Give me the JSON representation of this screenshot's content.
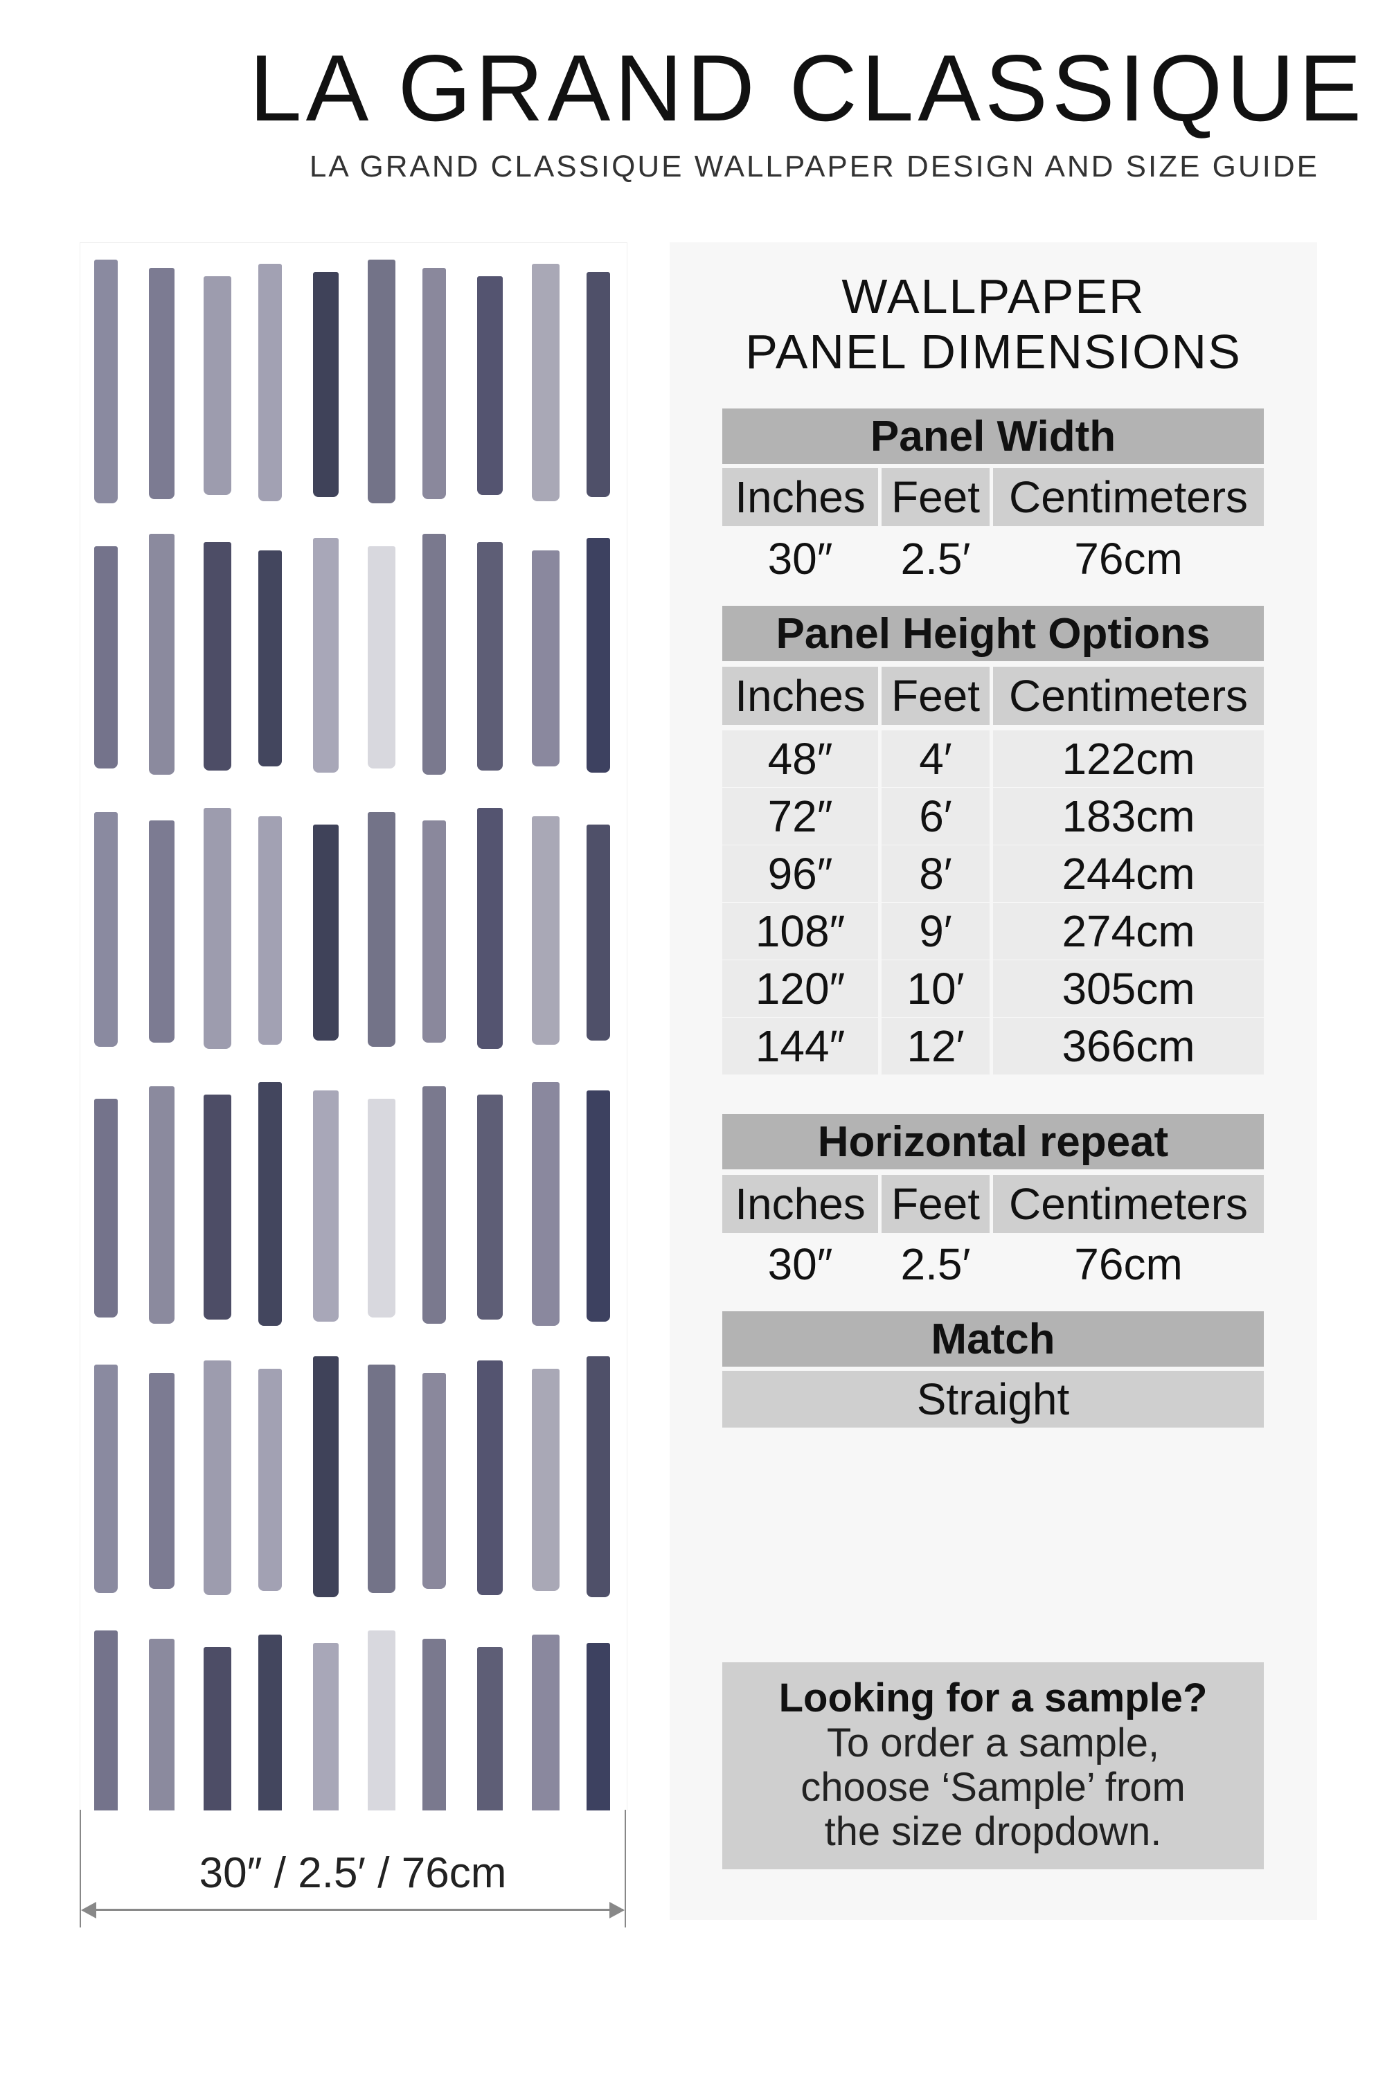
{
  "header": {
    "title": "LA GRAND CLASSIQUE",
    "subtitle": "LA GRAND CLASSIQUE WALLPAPER DESIGN AND SIZE GUIDE"
  },
  "preview": {
    "width_label": "30″ / 2.5′ / 76cm",
    "pattern_a_colors": [
      "#8a8aa0",
      "#7c7b92",
      "#9d9cae",
      "#a2a1b3",
      "#3f4259",
      "#737388",
      "#8a889c",
      "#545470",
      "#a9a8b6",
      "#4f5069"
    ],
    "pattern_b_colors": [
      "#74738b",
      "#8b8a9e",
      "#4d4d66",
      "#43465e",
      "#a8a7b8",
      "#d8d8de",
      "#7a798e",
      "#5e5e76",
      "#8a889e",
      "#3d4160"
    ]
  },
  "dimensions": {
    "title_line1": "WALLPAPER",
    "title_line2": "PANEL DIMENSIONS",
    "columns": [
      "Inches",
      "Feet",
      "Centimeters"
    ],
    "panel_width": {
      "heading": "Panel Width",
      "values": [
        "30″",
        "2.5′",
        "76cm"
      ]
    },
    "panel_height": {
      "heading": "Panel Height Options",
      "rows": [
        [
          "48″",
          "4′",
          "122cm"
        ],
        [
          "72″",
          "6′",
          "183cm"
        ],
        [
          "96″",
          "8′",
          "244cm"
        ],
        [
          "108″",
          "9′",
          "274cm"
        ],
        [
          "120″",
          "10′",
          "305cm"
        ],
        [
          "144″",
          "12′",
          "366cm"
        ]
      ]
    },
    "horizontal_repeat": {
      "heading": "Horizontal repeat",
      "values": [
        "30″",
        "2.5′",
        "76cm"
      ]
    },
    "match": {
      "heading": "Match",
      "value": "Straight"
    }
  },
  "sample": {
    "title": "Looking for a sample?",
    "line1": "To order a sample,",
    "line2": "choose ‘Sample’ from",
    "line3": "the size dropdown."
  }
}
